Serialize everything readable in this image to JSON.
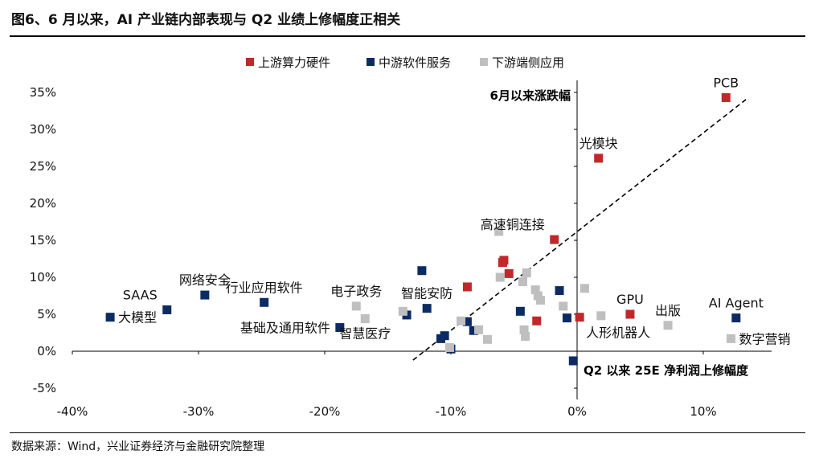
{
  "page": {
    "title": "图6、6 月以来，AI 产业链内部表现与 Q2 业绩上修幅度正相关",
    "source": "数据来源：Wind，兴业证券经济与金融研究院整理"
  },
  "colors": {
    "upstream": "#c0282a",
    "midstream": "#0d2b63",
    "downstream": "#bfbfbf",
    "axis": "#000000",
    "trend": "#000000"
  },
  "chart_data": {
    "type": "scatter",
    "title": "",
    "xlabel": "Q2 以来 25E 净利润上修幅度",
    "ylabel": "6月以来涨跌幅",
    "xlim": [
      -40,
      15
    ],
    "ylim": [
      -5,
      35
    ],
    "xticks": [
      -40,
      -30,
      -20,
      -10,
      0,
      10
    ],
    "yticks": [
      -5,
      0,
      5,
      10,
      15,
      20,
      25,
      30,
      35
    ],
    "xtick_labels": [
      "-40%",
      "-30%",
      "-20%",
      "-10%",
      "0%",
      "10%"
    ],
    "ytick_labels": [
      "-5%",
      "0%",
      "5%",
      "10%",
      "15%",
      "20%",
      "25%",
      "30%",
      "35%"
    ],
    "trendline": {
      "x": [
        -13,
        13.5
      ],
      "y": [
        -1.2,
        34.2
      ],
      "style": "dashed"
    },
    "legend": {
      "placement": "top-center",
      "entries": [
        {
          "key": "upstream",
          "label": "上游算力硬件"
        },
        {
          "key": "midstream",
          "label": "中游软件服务"
        },
        {
          "key": "downstream",
          "label": "下游端侧应用"
        }
      ]
    },
    "series": [
      {
        "name": "上游算力硬件",
        "key": "upstream",
        "points": [
          {
            "x": 11.8,
            "y": 34.3,
            "label": "PCB",
            "anchor": "above"
          },
          {
            "x": 1.7,
            "y": 26.1,
            "label": "光模块",
            "anchor": "above"
          },
          {
            "x": -1.8,
            "y": 15.1,
            "label": "高速铜连接",
            "anchor": "above-left"
          },
          {
            "x": -5.8,
            "y": 12.3,
            "label": ""
          },
          {
            "x": -5.9,
            "y": 12.0,
            "label": ""
          },
          {
            "x": -5.4,
            "y": 10.5,
            "label": ""
          },
          {
            "x": -8.7,
            "y": 8.7,
            "label": ""
          },
          {
            "x": -3.2,
            "y": 4.1,
            "label": ""
          },
          {
            "x": 0.2,
            "y": 4.6,
            "label": "人形机器人",
            "anchor": "below-right"
          },
          {
            "x": 4.2,
            "y": 5.0,
            "label": "GPU",
            "anchor": "above"
          }
        ]
      },
      {
        "name": "中游软件服务",
        "key": "midstream",
        "points": [
          {
            "x": -37.0,
            "y": 4.6,
            "label": "大模型",
            "anchor": "right"
          },
          {
            "x": -32.5,
            "y": 5.6,
            "label": "SAAS",
            "anchor": "above-left"
          },
          {
            "x": -29.5,
            "y": 7.6,
            "label": "网络安全",
            "anchor": "above"
          },
          {
            "x": -24.8,
            "y": 6.6,
            "label": "行业应用软件",
            "anchor": "above"
          },
          {
            "x": -18.8,
            "y": 3.2,
            "label": "基础及通用软件",
            "anchor": "left"
          },
          {
            "x": -12.3,
            "y": 10.9,
            "label": ""
          },
          {
            "x": -11.9,
            "y": 5.8,
            "label": "智能安防",
            "anchor": "above"
          },
          {
            "x": -13.5,
            "y": 4.9,
            "label": ""
          },
          {
            "x": -10.8,
            "y": 1.7,
            "label": ""
          },
          {
            "x": -10.5,
            "y": 2.1,
            "label": ""
          },
          {
            "x": -10.0,
            "y": 0.3,
            "label": ""
          },
          {
            "x": -8.7,
            "y": 4.0,
            "label": ""
          },
          {
            "x": -8.2,
            "y": 2.8,
            "label": ""
          },
          {
            "x": -4.5,
            "y": 5.4,
            "label": ""
          },
          {
            "x": -1.4,
            "y": 8.2,
            "label": ""
          },
          {
            "x": -0.8,
            "y": 4.5,
            "label": ""
          },
          {
            "x": -0.3,
            "y": -1.3,
            "label": ""
          },
          {
            "x": 12.6,
            "y": 4.5,
            "label": "AI Agent",
            "anchor": "above"
          }
        ]
      },
      {
        "name": "下游端侧应用",
        "key": "downstream",
        "points": [
          {
            "x": -17.5,
            "y": 6.1,
            "label": "电子政务",
            "anchor": "above"
          },
          {
            "x": -16.8,
            "y": 4.4,
            "label": "智慧医疗",
            "anchor": "below"
          },
          {
            "x": -13.8,
            "y": 5.4,
            "label": ""
          },
          {
            "x": -6.2,
            "y": 16.2,
            "label": ""
          },
          {
            "x": -6.1,
            "y": 10.0,
            "label": ""
          },
          {
            "x": -4.3,
            "y": 9.4,
            "label": ""
          },
          {
            "x": -4.0,
            "y": 10.6,
            "label": ""
          },
          {
            "x": -3.3,
            "y": 8.3,
            "label": ""
          },
          {
            "x": -3.1,
            "y": 7.5,
            "label": ""
          },
          {
            "x": -2.9,
            "y": 6.9,
            "label": ""
          },
          {
            "x": -1.1,
            "y": 6.1,
            "label": ""
          },
          {
            "x": 0.6,
            "y": 8.5,
            "label": ""
          },
          {
            "x": -9.2,
            "y": 4.1,
            "label": ""
          },
          {
            "x": -7.8,
            "y": 2.9,
            "label": ""
          },
          {
            "x": -7.1,
            "y": 1.6,
            "label": ""
          },
          {
            "x": -4.2,
            "y": 2.9,
            "label": ""
          },
          {
            "x": -4.1,
            "y": 2.0,
            "label": ""
          },
          {
            "x": -10.1,
            "y": 0.5,
            "label": ""
          },
          {
            "x": 1.9,
            "y": 4.8,
            "label": ""
          },
          {
            "x": 7.2,
            "y": 3.5,
            "label": "出版",
            "anchor": "above"
          },
          {
            "x": 12.2,
            "y": 1.7,
            "label": "数字营销",
            "anchor": "right"
          }
        ]
      }
    ]
  }
}
